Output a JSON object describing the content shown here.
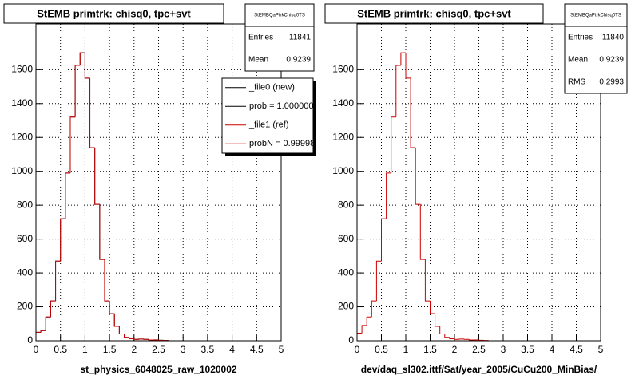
{
  "chart_data": [
    {
      "type": "histogram",
      "title": "StEMB primtrk: chisq0, tpc+svt",
      "x_label": "st_physics_6048025_raw_1020002",
      "bins": [
        0,
        0.1,
        0.2,
        0.3,
        0.4,
        0.5,
        0.6,
        0.7,
        0.8,
        0.9,
        1,
        1.1,
        1.2,
        1.3,
        1.4,
        1.5,
        1.6,
        1.7,
        1.8,
        1.9,
        2,
        2.1,
        2.2,
        2.3,
        2.4,
        2.5,
        2.6,
        2.7,
        2.8,
        2.9,
        3,
        3.1,
        3.2,
        3.3,
        3.4,
        3.5,
        3.6,
        3.7,
        3.8,
        3.9,
        4,
        4.1,
        4.2,
        4.3,
        4.4,
        4.5,
        4.6,
        4.7,
        4.8,
        4.9,
        5
      ],
      "series": [
        {
          "name": "_file0 (new)",
          "color": "#000000",
          "values": [
            50,
            60,
            140,
            235,
            470,
            720,
            990,
            1320,
            1625,
            1700,
            1550,
            1140,
            805,
            480,
            235,
            160,
            85,
            40,
            20,
            12,
            8,
            10,
            8,
            5,
            5,
            3,
            2,
            0,
            0,
            0,
            0,
            0,
            0,
            0,
            0,
            0,
            0,
            0,
            0,
            0,
            0,
            0,
            0,
            0,
            0,
            0,
            0,
            0,
            0,
            0
          ]
        },
        {
          "name": "_file1 (ref)",
          "color": "#cc0000",
          "values": [
            50,
            60,
            140,
            235,
            470,
            720,
            990,
            1320,
            1625,
            1700,
            1550,
            1140,
            805,
            480,
            235,
            160,
            85,
            40,
            20,
            12,
            8,
            10,
            8,
            5,
            5,
            3,
            2,
            0,
            0,
            0,
            0,
            0,
            0,
            0,
            0,
            0,
            0,
            0,
            0,
            0,
            0,
            0,
            0,
            0,
            0,
            0,
            0,
            0,
            0,
            0
          ]
        }
      ],
      "legend_extra": [
        {
          "label": "prob = 1.000000",
          "color": "#000000"
        },
        {
          "label": "probN = 0.99998",
          "color": "#cc0000"
        }
      ],
      "stats": {
        "title": "StEMBQaPtrkChisq0TS",
        "rows": [
          [
            "Entries",
            "11841"
          ],
          [
            "Mean",
            "0.9239"
          ]
        ]
      },
      "xlim": [
        0,
        5
      ],
      "xticks": [
        0,
        0.5,
        1,
        1.5,
        2,
        2.5,
        3,
        3.5,
        4,
        4.5,
        5
      ],
      "ylim": [
        0,
        1870
      ],
      "yticks": [
        0,
        200,
        400,
        600,
        800,
        1000,
        1200,
        1400,
        1600
      ],
      "grid": true
    },
    {
      "type": "histogram",
      "title": "StEMB primtrk: chisq0, tpc+svt",
      "x_label": "dev/daq_sl302.ittf/Sat/year_2005/CuCu200_MinBias/",
      "bins": [
        0,
        0.1,
        0.2,
        0.3,
        0.4,
        0.5,
        0.6,
        0.7,
        0.8,
        0.9,
        1,
        1.1,
        1.2,
        1.3,
        1.4,
        1.5,
        1.6,
        1.7,
        1.8,
        1.9,
        2,
        2.1,
        2.2,
        2.3,
        2.4,
        2.5,
        2.6,
        2.7,
        2.8,
        2.9,
        3,
        3.1,
        3.2,
        3.3,
        3.4,
        3.5,
        3.6,
        3.7,
        3.8,
        3.9,
        4,
        4.1,
        4.2,
        4.3,
        4.4,
        4.5,
        4.6,
        4.7,
        4.8,
        4.9,
        5
      ],
      "series": [
        {
          "color": "#cc0000",
          "values": [
            45,
            90,
            140,
            235,
            470,
            720,
            990,
            1320,
            1625,
            1700,
            1550,
            1140,
            805,
            480,
            235,
            160,
            85,
            40,
            20,
            12,
            8,
            10,
            8,
            5,
            5,
            3,
            2,
            0,
            0,
            0,
            0,
            0,
            0,
            0,
            0,
            0,
            0,
            0,
            0,
            0,
            0,
            0,
            0,
            0,
            0,
            0,
            0,
            0,
            0,
            0
          ]
        }
      ],
      "stats": {
        "title": "StEMBQaPtrkChisq0TS",
        "rows": [
          [
            "Entries",
            "11840"
          ],
          [
            "Mean",
            "0.9239"
          ],
          [
            "RMS",
            "0.2993"
          ]
        ]
      },
      "xlim": [
        0,
        5
      ],
      "xticks": [
        0,
        0.5,
        1,
        1.5,
        2,
        2.5,
        3,
        3.5,
        4,
        4.5,
        5
      ],
      "ylim": [
        0,
        1870
      ],
      "yticks": [
        0,
        200,
        400,
        600,
        800,
        1000,
        1200,
        1400,
        1600
      ],
      "grid": true
    }
  ]
}
